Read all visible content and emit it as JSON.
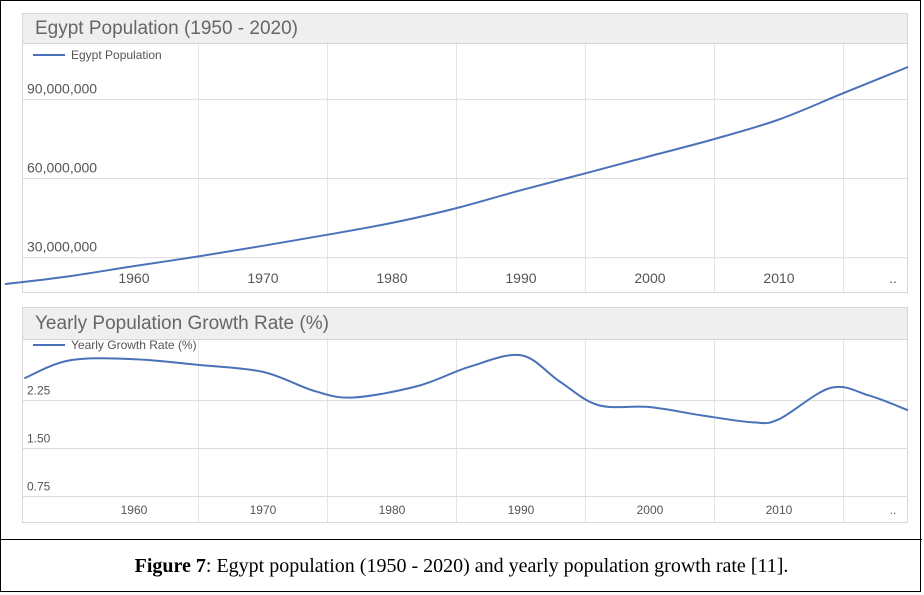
{
  "chart_data": [
    {
      "type": "line",
      "title": "Egypt Population (1950 - 2020)",
      "series": [
        {
          "name": "Egypt Population",
          "color": "#4a72b8",
          "x": [
            1950,
            1955,
            1960,
            1965,
            1970,
            1975,
            1980,
            1985,
            1990,
            1995,
            2000,
            2005,
            2010,
            2015,
            2020
          ],
          "values": [
            20000000,
            23000000,
            26800000,
            30500000,
            34500000,
            38700000,
            43200000,
            48800000,
            55600000,
            62000000,
            68500000,
            75000000,
            82400000,
            92400000,
            102300000
          ]
        }
      ],
      "xlim": [
        1951.4,
        2020
      ],
      "ylim": [
        17000000,
        111000000
      ],
      "x_ticks": [
        "1960",
        "1970",
        "1980",
        "1990",
        "2000",
        "2010",
        ".."
      ],
      "y_ticks": [
        "30,000,000",
        "60,000,000",
        "90,000,000"
      ],
      "grid": true,
      "legend": "top-left"
    },
    {
      "type": "line",
      "title": "Yearly Population Growth Rate (%)",
      "series": [
        {
          "name": "Yearly Growth Rate (%)",
          "color": "#4a72b8",
          "x": [
            1951.5,
            1955,
            1960,
            1965,
            1970,
            1974,
            1977,
            1982,
            1986,
            1990,
            1993,
            1996,
            2000,
            2004,
            2008,
            2010,
            2014,
            2017,
            2020
          ],
          "values": [
            2.6,
            2.88,
            2.9,
            2.81,
            2.7,
            2.4,
            2.3,
            2.48,
            2.78,
            2.96,
            2.55,
            2.18,
            2.15,
            2.02,
            1.91,
            1.96,
            2.45,
            2.33,
            2.1
          ]
        }
      ],
      "xlim": [
        1951.4,
        2020
      ],
      "ylim": [
        0.35,
        3.2
      ],
      "x_ticks": [
        "1960",
        "1970",
        "1980",
        "1990",
        "2000",
        "2010",
        ".."
      ],
      "y_ticks": [
        "0.75",
        "1.50",
        "2.25"
      ],
      "grid": true,
      "legend": "top-left"
    }
  ],
  "caption": {
    "label": "Figure 7",
    "text": ": Egypt population (1950 - 2020) and yearly population growth rate   [11]."
  }
}
